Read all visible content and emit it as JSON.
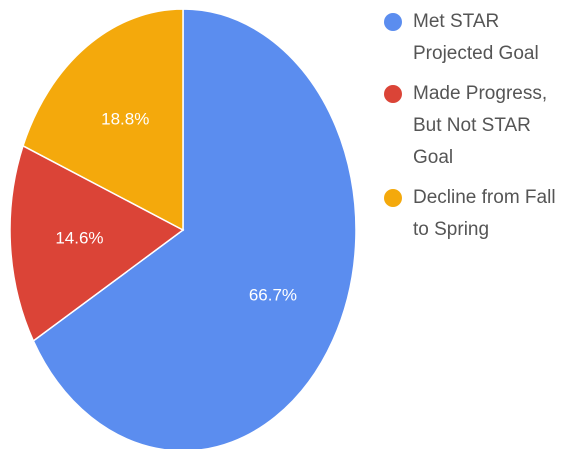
{
  "chart_data": {
    "type": "pie",
    "categories": [
      "Met STAR Projected Goal",
      "Made Progress, But Not STAR Goal",
      "Decline from Fall to Spring"
    ],
    "values": [
      66.7,
      14.6,
      18.8
    ],
    "value_labels": [
      "66.7%",
      "14.6%",
      "18.8%"
    ],
    "colors": [
      "#5b8def",
      "#db4437",
      "#f4a90c"
    ],
    "legend": "right"
  }
}
